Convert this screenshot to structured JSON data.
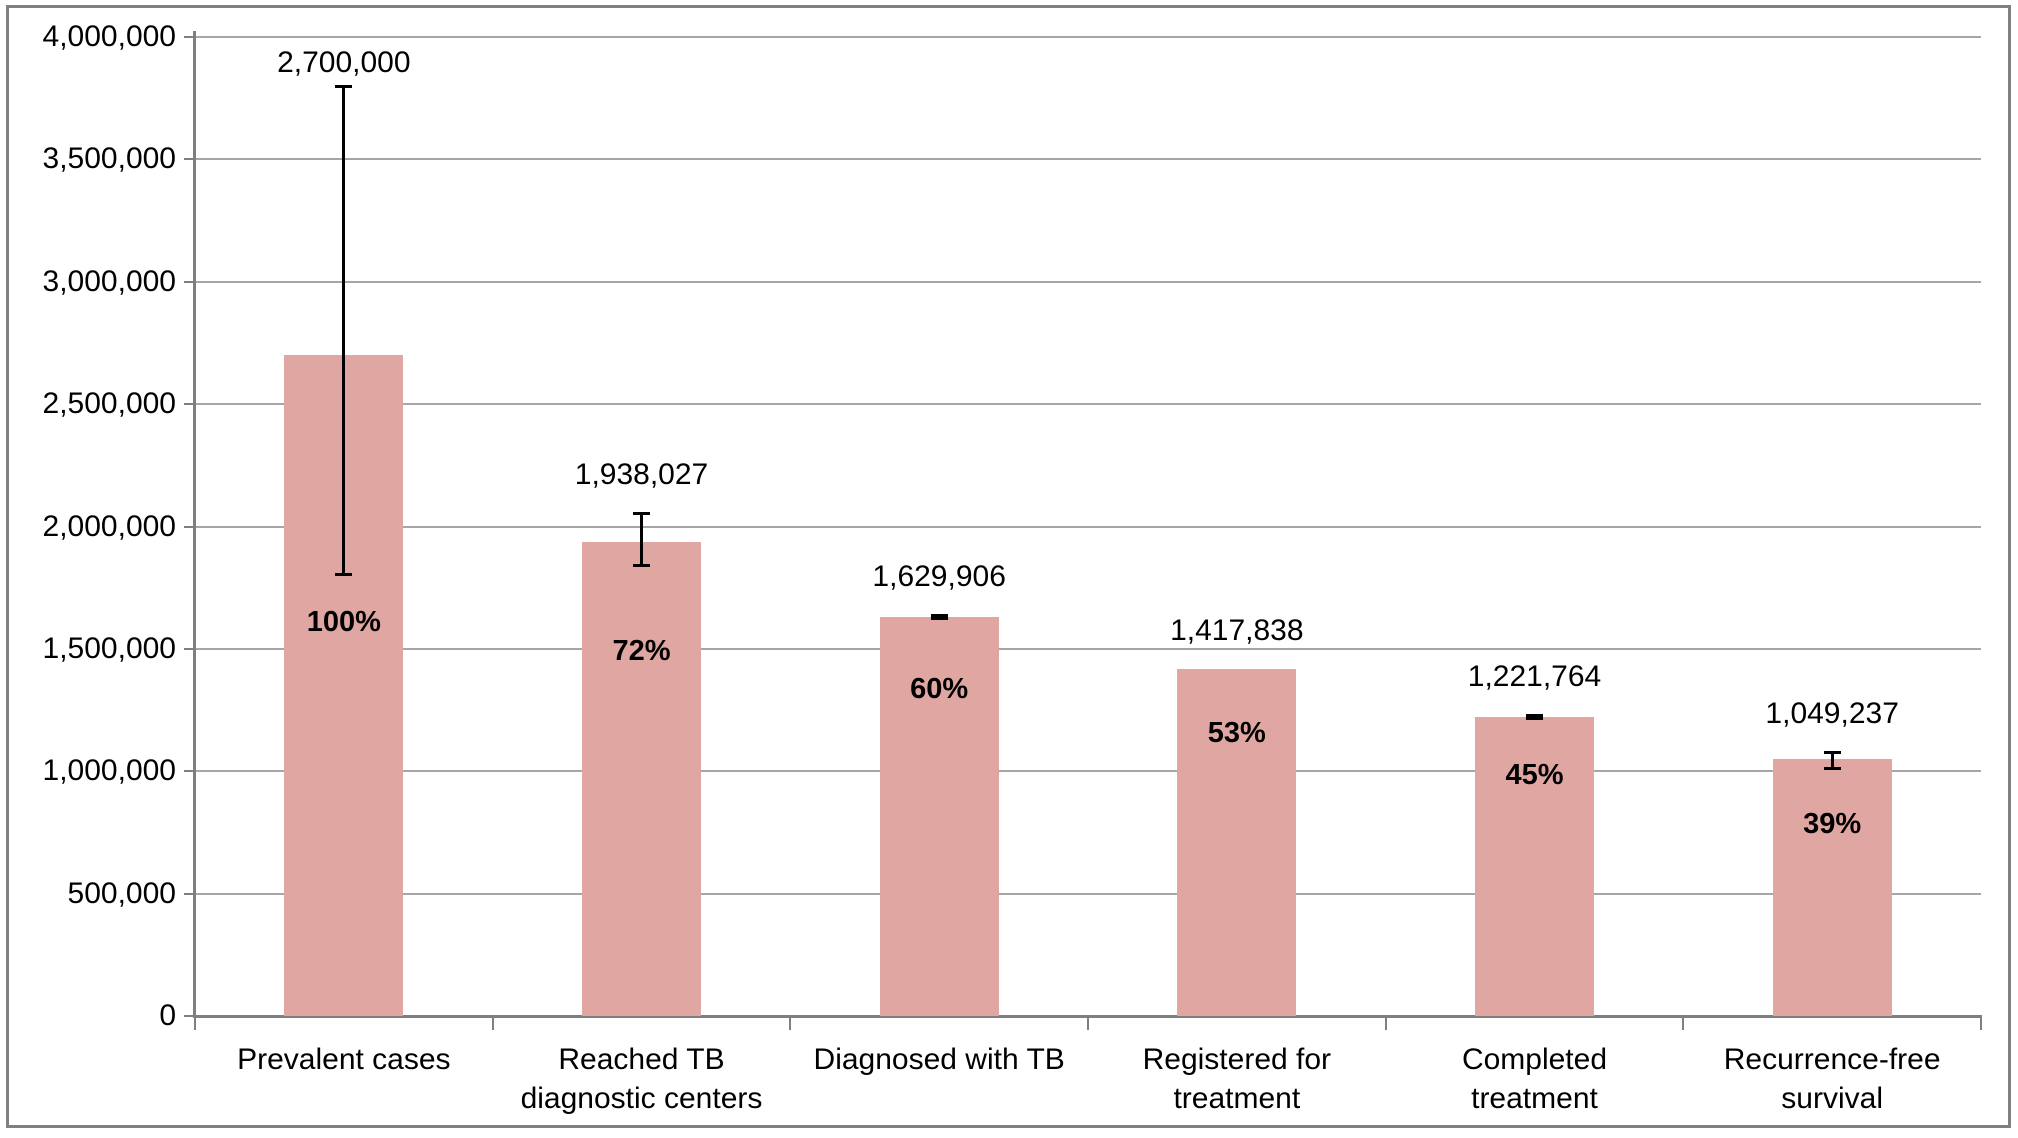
{
  "chart_data": {
    "type": "bar",
    "title": "",
    "xlabel": "",
    "ylabel": "",
    "categories": [
      "Prevalent cases",
      "Reached TB\ndiagnostic centers",
      "Diagnosed with TB",
      "Registered for\ntreatment",
      "Completed\ntreatment",
      "Recurrence-free\nsurvival"
    ],
    "values": [
      2700000,
      1938027,
      1629906,
      1417838,
      1221764,
      1049237
    ],
    "value_labels": [
      "2,700,000",
      "1,938,027",
      "1,629,906",
      "1,417,838",
      "1,221,764",
      "1,049,237"
    ],
    "percent_labels": [
      "100%",
      "72%",
      "60%",
      "53%",
      "45%",
      "39%"
    ],
    "error_bars": [
      {
        "low": 1800000,
        "high": 3800000
      },
      {
        "low": 1838000,
        "high": 2055000
      },
      {
        "low": 1622000,
        "high": 1638000
      },
      null,
      {
        "low": 1213000,
        "high": 1230000
      },
      {
        "low": 1010000,
        "high": 1078000
      }
    ],
    "ylim": [
      0,
      4000000
    ],
    "ytick_interval": 500000,
    "ytick_labels": [
      "0",
      "500,000",
      "1,000,000",
      "1,500,000",
      "2,000,000",
      "2,500,000",
      "3,000,000",
      "3,500,000",
      "4,000,000"
    ],
    "grid": true,
    "legend": false,
    "colors": {
      "bar_fill": "#E0A6A2",
      "gridline": "#A6A6A6",
      "axis": "#7F7F7F",
      "chart_border": "#808080",
      "text": "#000000",
      "error_bar": "#000000"
    }
  }
}
